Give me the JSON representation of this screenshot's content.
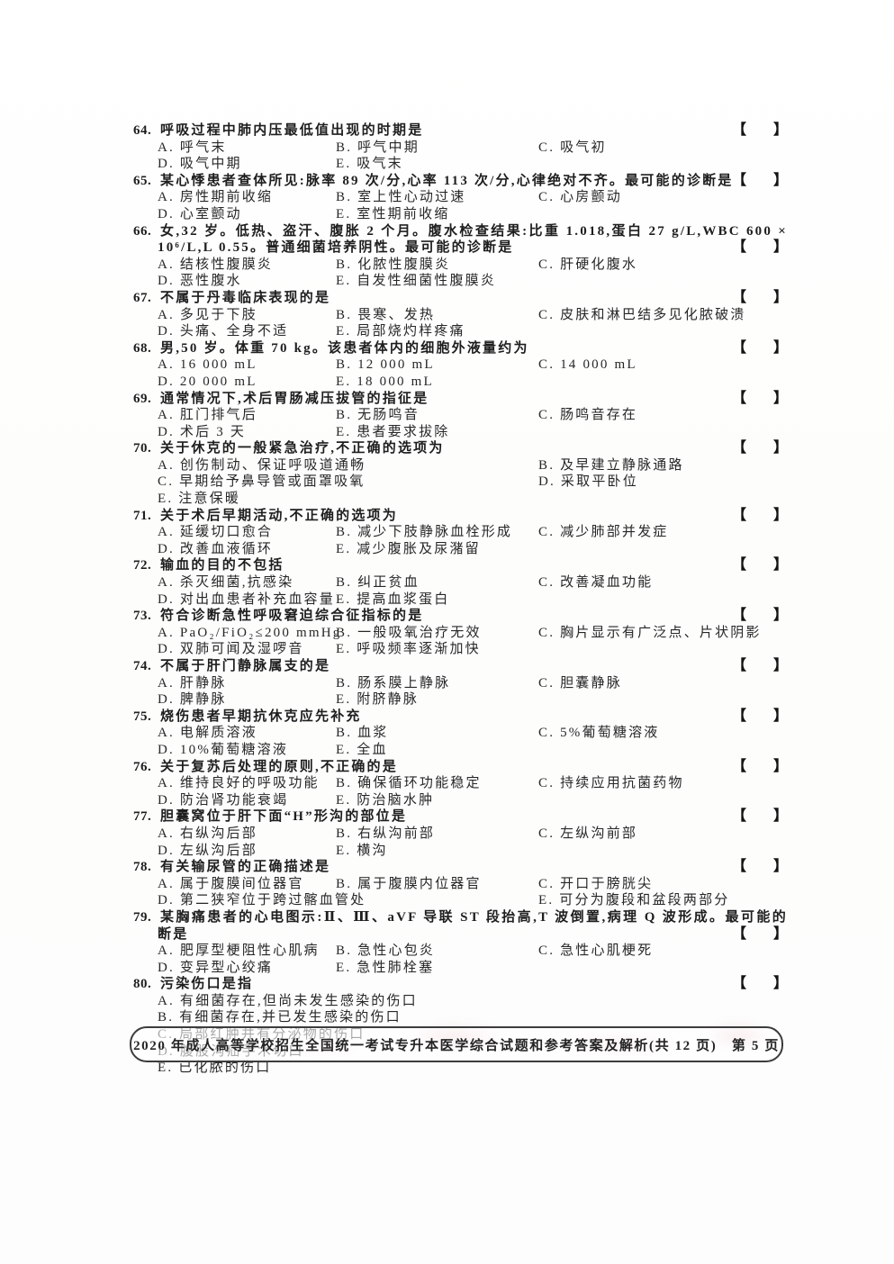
{
  "page": {
    "bracket_open": "【",
    "bracket_close": "】",
    "footer": "2020 年成人高等学校招生全国统一考试专升本医学综合试题和参考答案及解析(共 12 页)　第 5 页"
  },
  "questions": [
    {
      "number": "64.",
      "stem": [
        {
          "text": "呼吸过程中肺内压最低值出现的时期是",
          "bracket": true
        }
      ],
      "options": [
        {
          "layout": "c3",
          "cells": [
            "A. 呼气末",
            "B. 呼气中期",
            "C. 吸气初"
          ]
        },
        {
          "layout": "c2near",
          "cells": [
            "D. 吸气中期",
            "E. 吸气末"
          ]
        }
      ]
    },
    {
      "number": "65.",
      "stem": [
        {
          "text": "某心悸患者查体所见:脉率 89 次/分,心率 113 次/分,心律绝对不齐。最可能的诊断是",
          "bracket": true
        }
      ],
      "options": [
        {
          "layout": "c3",
          "cells": [
            "A. 房性期前收缩",
            "B. 室上性心动过速",
            "C. 心房颤动"
          ]
        },
        {
          "layout": "c2near",
          "cells": [
            "D. 心室颤动",
            "E. 室性期前收缩"
          ]
        }
      ]
    },
    {
      "number": "66.",
      "stem": [
        {
          "text": "女,32 岁。低热、盗汗、腹胀 2 个月。腹水检查结果:比重 1.018,蛋白 27 g/L,WBC 600 ×",
          "fill": true
        },
        {
          "text": "10⁶/L,L 0.55。普通细菌培养阴性。最可能的诊断是",
          "bracket": true
        }
      ],
      "options": [
        {
          "layout": "c3",
          "cells": [
            "A. 结核性腹膜炎",
            "B. 化脓性腹膜炎",
            "C. 肝硬化腹水"
          ]
        },
        {
          "layout": "c2near",
          "cells": [
            "D. 恶性腹水",
            "E. 自发性细菌性腹膜炎"
          ]
        }
      ]
    },
    {
      "number": "67.",
      "stem": [
        {
          "text": "不属于丹毒临床表现的是",
          "bracket": true
        }
      ],
      "options": [
        {
          "layout": "c3",
          "cells": [
            "A. 多见于下肢",
            "B. 畏寒、发热",
            "C. 皮肤和淋巴结多见化脓破溃"
          ]
        },
        {
          "layout": "c2near",
          "cells": [
            "D. 头痛、全身不适",
            "E. 局部烧灼样疼痛"
          ]
        }
      ]
    },
    {
      "number": "68.",
      "stem": [
        {
          "text": "男,50 岁。体重 70 kg。该患者体内的细胞外液量约为",
          "bracket": true
        }
      ],
      "options": [
        {
          "layout": "c3",
          "cells": [
            "A. 16 000 mL",
            "B. 12 000 mL",
            "C. 14 000 mL"
          ]
        },
        {
          "layout": "c2near",
          "cells": [
            "D. 20 000 mL",
            "E. 18 000 mL"
          ]
        }
      ]
    },
    {
      "number": "69.",
      "stem": [
        {
          "text": "通常情况下,术后胃肠减压拔管的指征是",
          "bracket": true
        }
      ],
      "options": [
        {
          "layout": "c3",
          "cells": [
            "A. 肛门排气后",
            "B. 无肠鸣音",
            "C. 肠鸣音存在"
          ]
        },
        {
          "layout": "c2near",
          "cells": [
            "D. 术后 3 天",
            "E. 患者要求拔除"
          ]
        }
      ]
    },
    {
      "number": "70.",
      "stem": [
        {
          "text": "关于休克的一般紧急治疗,不正确的选项为",
          "bracket": true
        }
      ],
      "options": [
        {
          "layout": "c2wide",
          "cells": [
            "A. 创伤制动、保证呼吸道通畅",
            "B. 及早建立静脉通路"
          ]
        },
        {
          "layout": "c2wide",
          "cells": [
            "C. 早期给予鼻导管或面罩吸氧",
            "D. 采取平卧位"
          ]
        },
        {
          "layout": "c1",
          "cells": [
            "E. 注意保暖"
          ]
        }
      ]
    },
    {
      "number": "71.",
      "stem": [
        {
          "text": "关于术后早期活动,不正确的选项为",
          "bracket": true
        }
      ],
      "options": [
        {
          "layout": "c3",
          "cells": [
            "A. 延缓切口愈合",
            "B. 减少下肢静脉血栓形成",
            "C. 减少肺部并发症"
          ]
        },
        {
          "layout": "c2near",
          "cells": [
            "D. 改善血液循环",
            "E. 减少腹胀及尿潴留"
          ]
        }
      ]
    },
    {
      "number": "72.",
      "stem": [
        {
          "text": "输血的目的不包括",
          "bracket": true
        }
      ],
      "options": [
        {
          "layout": "c3",
          "cells": [
            "A. 杀灭细菌,抗感染",
            "B. 纠正贫血",
            "C. 改善凝血功能"
          ]
        },
        {
          "layout": "c2near",
          "cells": [
            "D. 对出血患者补充血容量",
            "E. 提高血浆蛋白"
          ]
        }
      ]
    },
    {
      "number": "73.",
      "stem": [
        {
          "text": "符合诊断急性呼吸窘迫综合征指标的是",
          "bracket": true
        }
      ],
      "options": [
        {
          "layout": "c3",
          "cells": [
            "A. PaO₂/FiO₂≤200 mmHg",
            "B. 一般吸氧治疗无效",
            "C. 胸片显示有广泛点、片状阴影"
          ]
        },
        {
          "layout": "c2near",
          "cells": [
            "D. 双肺可闻及湿啰音",
            "E. 呼吸频率逐渐加快"
          ]
        }
      ]
    },
    {
      "number": "74.",
      "stem": [
        {
          "text": "不属于肝门静脉属支的是",
          "bracket": true
        }
      ],
      "options": [
        {
          "layout": "c3",
          "cells": [
            "A. 肝静脉",
            "B. 肠系膜上静脉",
            "C. 胆囊静脉"
          ]
        },
        {
          "layout": "c2near",
          "cells": [
            "D. 脾静脉",
            "E. 附脐静脉"
          ]
        }
      ]
    },
    {
      "number": "75.",
      "stem": [
        {
          "text": "烧伤患者早期抗休克应先补充",
          "bracket": true
        }
      ],
      "options": [
        {
          "layout": "c3",
          "cells": [
            "A. 电解质溶液",
            "B. 血浆",
            "C. 5%葡萄糖溶液"
          ]
        },
        {
          "layout": "c2near",
          "cells": [
            "D. 10%葡萄糖溶液",
            "E. 全血"
          ]
        }
      ]
    },
    {
      "number": "76.",
      "stem": [
        {
          "text": "关于复苏后处理的原则,不正确的是",
          "bracket": true
        }
      ],
      "options": [
        {
          "layout": "c3",
          "cells": [
            "A. 维持良好的呼吸功能",
            "B. 确保循环功能稳定",
            "C. 持续应用抗菌药物"
          ]
        },
        {
          "layout": "c2near",
          "cells": [
            "D. 防治肾功能衰竭",
            "E. 防治脑水肿"
          ]
        }
      ]
    },
    {
      "number": "77.",
      "stem": [
        {
          "text": "胆囊窝位于肝下面“H”形沟的部位是",
          "bracket": true
        }
      ],
      "options": [
        {
          "layout": "c3",
          "cells": [
            "A. 右纵沟后部",
            "B. 右纵沟前部",
            "C. 左纵沟前部"
          ]
        },
        {
          "layout": "c2near",
          "cells": [
            "D. 左纵沟后部",
            "E. 横沟"
          ]
        }
      ]
    },
    {
      "number": "78.",
      "stem": [
        {
          "text": "有关输尿管的正确描述是",
          "bracket": true
        }
      ],
      "options": [
        {
          "layout": "c3",
          "cells": [
            "A. 属于腹膜间位器官",
            "B. 属于腹膜内位器官",
            "C. 开口于膀胱尖"
          ]
        },
        {
          "layout": "c2wide",
          "cells": [
            "D. 第二狭窄位于跨过髂血管处",
            "E. 可分为腹段和盆段两部分"
          ]
        }
      ]
    },
    {
      "number": "79.",
      "stem": [
        {
          "text": "某胸痛患者的心电图示:Ⅱ、Ⅲ、aVF 导联 ST 段抬高,T 波倒置,病理 Q 波形成。最可能的诊",
          "fill": true
        },
        {
          "text": "断是",
          "bracket": true
        }
      ],
      "options": [
        {
          "layout": "c3",
          "cells": [
            "A. 肥厚型梗阻性心肌病",
            "B. 急性心包炎",
            "C. 急性心肌梗死"
          ]
        },
        {
          "layout": "c2near",
          "cells": [
            "D. 变异型心绞痛",
            "E. 急性肺栓塞"
          ]
        }
      ]
    },
    {
      "number": "80.",
      "stem": [
        {
          "text": "污染伤口是指",
          "bracket": true
        }
      ],
      "options": [
        {
          "layout": "c1",
          "cells": [
            "A. 有细菌存在,但尚未发生感染的伤口"
          ]
        },
        {
          "layout": "c1",
          "cells": [
            "B. 有细菌存在,并已发生感染的伤口"
          ]
        },
        {
          "layout": "c1",
          "cells": [
            "C. 局部红肿并有分泌物的伤口"
          ]
        },
        {
          "layout": "c1",
          "cells": [
            "D. 腹股沟疝手术切口"
          ]
        },
        {
          "layout": "c1",
          "cells": [
            "E. 已化脓的伤口"
          ]
        }
      ]
    }
  ]
}
